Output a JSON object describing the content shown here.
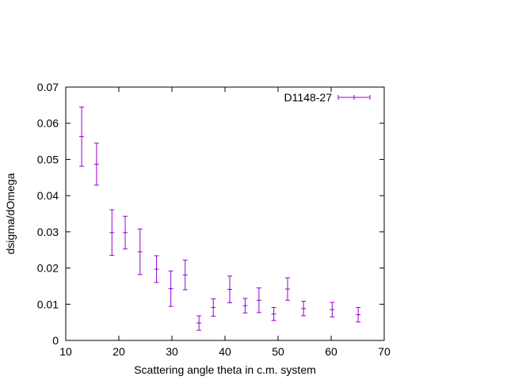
{
  "chart_data": {
    "type": "scatter",
    "title": "",
    "xlabel": "Scattering angle theta in c.m. system",
    "ylabel": "dsigma/dOmega",
    "xlim": [
      10,
      70
    ],
    "ylim": [
      0,
      0.07
    ],
    "x_ticks": [
      10,
      20,
      30,
      40,
      50,
      60,
      70
    ],
    "y_ticks": [
      0,
      0.01,
      0.02,
      0.03,
      0.04,
      0.05,
      0.06,
      0.07
    ],
    "x_tick_labels": [
      "10",
      "20",
      "30",
      "40",
      "50",
      "60",
      "70"
    ],
    "y_tick_labels": [
      "0",
      "0.01",
      "0.02",
      "0.03",
      "0.04",
      "0.05",
      "0.06",
      "0.07"
    ],
    "grid": false,
    "legend_position": "top-right",
    "series": [
      {
        "name": "D1148-27",
        "color": "#9400d3",
        "style": "errorbars",
        "points": [
          {
            "x": 13.0,
            "y": 0.0563,
            "err": 0.0082
          },
          {
            "x": 15.8,
            "y": 0.0487,
            "err": 0.0058
          },
          {
            "x": 18.7,
            "y": 0.0298,
            "err": 0.0063
          },
          {
            "x": 21.2,
            "y": 0.0298,
            "err": 0.0045
          },
          {
            "x": 24.0,
            "y": 0.0245,
            "err": 0.0063
          },
          {
            "x": 27.1,
            "y": 0.0197,
            "err": 0.0037
          },
          {
            "x": 29.8,
            "y": 0.0143,
            "err": 0.0049
          },
          {
            "x": 32.5,
            "y": 0.0181,
            "err": 0.0041
          },
          {
            "x": 35.1,
            "y": 0.0048,
            "err": 0.002
          },
          {
            "x": 37.8,
            "y": 0.0091,
            "err": 0.0024
          },
          {
            "x": 40.9,
            "y": 0.0141,
            "err": 0.0037
          },
          {
            "x": 43.8,
            "y": 0.0096,
            "err": 0.002
          },
          {
            "x": 46.4,
            "y": 0.0111,
            "err": 0.0034
          },
          {
            "x": 49.2,
            "y": 0.0073,
            "err": 0.0018
          },
          {
            "x": 51.8,
            "y": 0.0142,
            "err": 0.0031
          },
          {
            "x": 54.8,
            "y": 0.0088,
            "err": 0.002
          },
          {
            "x": 60.2,
            "y": 0.0085,
            "err": 0.002
          },
          {
            "x": 65.1,
            "y": 0.0071,
            "err": 0.002
          }
        ]
      }
    ]
  }
}
